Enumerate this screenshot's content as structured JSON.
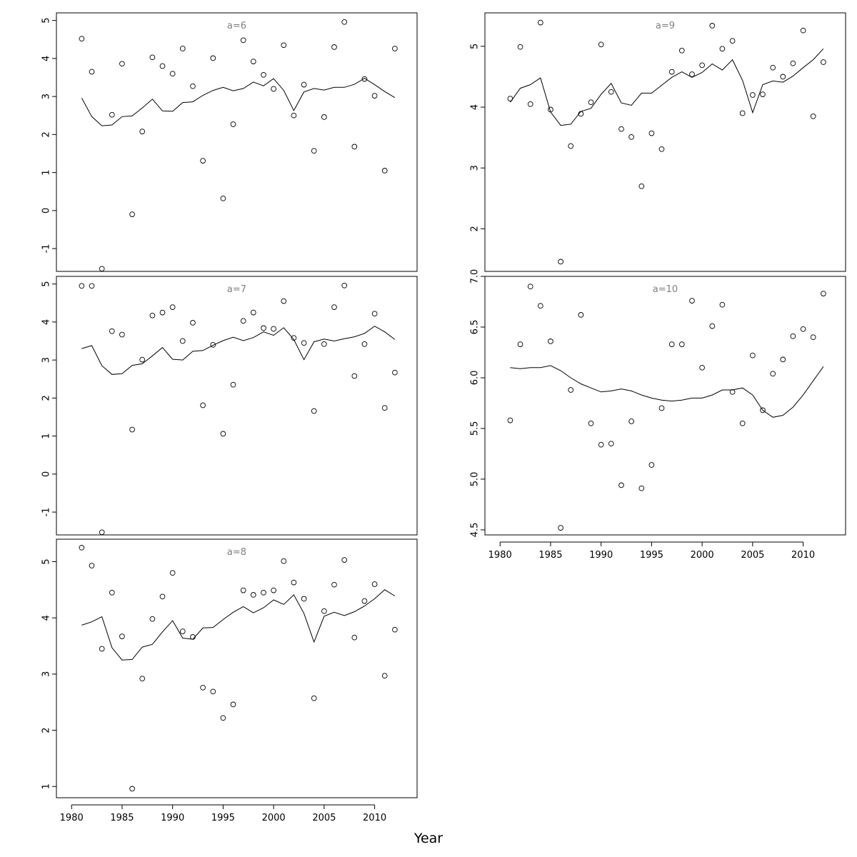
{
  "x_axis_title": "Year",
  "chart_data": [
    {
      "type": "scatter",
      "label": "a=6",
      "ylim": [
        -1.6,
        5.2
      ],
      "yticks": [
        "-1",
        "0",
        "1",
        "2",
        "3",
        "4",
        "5"
      ],
      "points": [
        [
          1981,
          4.52
        ],
        [
          1982,
          3.65
        ],
        [
          1983,
          -1.53
        ],
        [
          1984,
          2.52
        ],
        [
          1985,
          3.86
        ],
        [
          1986,
          -0.1
        ],
        [
          1987,
          2.08
        ],
        [
          1988,
          4.03
        ],
        [
          1989,
          3.8
        ],
        [
          1990,
          3.6
        ],
        [
          1991,
          4.26
        ],
        [
          1992,
          3.27
        ],
        [
          1993,
          1.31
        ],
        [
          1994,
          4.01
        ],
        [
          1995,
          0.32
        ],
        [
          1996,
          2.27
        ],
        [
          1997,
          4.48
        ],
        [
          1998,
          3.92
        ],
        [
          1999,
          3.57
        ],
        [
          2000,
          3.2
        ],
        [
          2001,
          4.35
        ],
        [
          2002,
          2.5
        ],
        [
          2003,
          3.31
        ],
        [
          2004,
          1.57
        ],
        [
          2005,
          2.46
        ],
        [
          2006,
          4.3
        ],
        [
          2007,
          4.96
        ],
        [
          2008,
          1.68
        ],
        [
          2009,
          3.46
        ],
        [
          2010,
          3.02
        ],
        [
          2011,
          1.05
        ],
        [
          2012,
          4.26
        ]
      ],
      "fit": [
        [
          1981,
          2.96
        ],
        [
          1982,
          2.47
        ],
        [
          1983,
          2.23
        ],
        [
          1984,
          2.25
        ],
        [
          1985,
          2.47
        ],
        [
          1986,
          2.49
        ],
        [
          1987,
          2.7
        ],
        [
          1988,
          2.93
        ],
        [
          1989,
          2.62
        ],
        [
          1990,
          2.61
        ],
        [
          1991,
          2.84
        ],
        [
          1992,
          2.86
        ],
        [
          1993,
          3.03
        ],
        [
          1994,
          3.16
        ],
        [
          1995,
          3.24
        ],
        [
          1996,
          3.15
        ],
        [
          1997,
          3.21
        ],
        [
          1998,
          3.38
        ],
        [
          1999,
          3.28
        ],
        [
          2000,
          3.47
        ],
        [
          2001,
          3.16
        ],
        [
          2002,
          2.63
        ],
        [
          2003,
          3.12
        ],
        [
          2004,
          3.21
        ],
        [
          2005,
          3.17
        ],
        [
          2006,
          3.24
        ],
        [
          2007,
          3.24
        ],
        [
          2008,
          3.32
        ],
        [
          2009,
          3.48
        ],
        [
          2010,
          3.31
        ],
        [
          2011,
          3.13
        ],
        [
          2012,
          2.97
        ]
      ]
    },
    {
      "type": "scatter",
      "label": "a=9",
      "ylim": [
        1.3,
        5.55
      ],
      "yticks": [
        "2",
        "3",
        "4",
        "5"
      ],
      "points": [
        [
          1981,
          4.14
        ],
        [
          1982,
          4.99
        ],
        [
          1983,
          4.05
        ],
        [
          1984,
          5.39
        ],
        [
          1985,
          3.96
        ],
        [
          1986,
          1.46
        ],
        [
          1987,
          3.36
        ],
        [
          1988,
          3.89
        ],
        [
          1989,
          4.08
        ],
        [
          1990,
          5.03
        ],
        [
          1991,
          4.25
        ],
        [
          1992,
          3.64
        ],
        [
          1993,
          3.51
        ],
        [
          1994,
          2.7
        ],
        [
          1995,
          3.57
        ],
        [
          1996,
          3.31
        ],
        [
          1997,
          4.58
        ],
        [
          1998,
          4.93
        ],
        [
          1999,
          4.54
        ],
        [
          2000,
          4.69
        ],
        [
          2001,
          5.34
        ],
        [
          2002,
          4.96
        ],
        [
          2003,
          5.09
        ],
        [
          2004,
          3.9
        ],
        [
          2005,
          4.2
        ],
        [
          2006,
          4.21
        ],
        [
          2007,
          4.65
        ],
        [
          2008,
          4.5
        ],
        [
          2009,
          4.72
        ],
        [
          2010,
          5.26
        ],
        [
          2011,
          3.85
        ],
        [
          2012,
          4.74
        ]
      ],
      "fit": [
        [
          1981,
          4.08
        ],
        [
          1982,
          4.31
        ],
        [
          1983,
          4.37
        ],
        [
          1984,
          4.48
        ],
        [
          1985,
          3.92
        ],
        [
          1986,
          3.7
        ],
        [
          1987,
          3.72
        ],
        [
          1988,
          3.93
        ],
        [
          1989,
          3.98
        ],
        [
          1990,
          4.21
        ],
        [
          1991,
          4.39
        ],
        [
          1992,
          4.07
        ],
        [
          1993,
          4.03
        ],
        [
          1994,
          4.23
        ],
        [
          1995,
          4.23
        ],
        [
          1996,
          4.36
        ],
        [
          1997,
          4.49
        ],
        [
          1998,
          4.58
        ],
        [
          1999,
          4.49
        ],
        [
          2000,
          4.57
        ],
        [
          2001,
          4.71
        ],
        [
          2002,
          4.61
        ],
        [
          2003,
          4.78
        ],
        [
          2004,
          4.44
        ],
        [
          2005,
          3.91
        ],
        [
          2006,
          4.37
        ],
        [
          2007,
          4.43
        ],
        [
          2008,
          4.41
        ],
        [
          2009,
          4.51
        ],
        [
          2010,
          4.65
        ],
        [
          2011,
          4.78
        ],
        [
          2012,
          4.96
        ]
      ]
    },
    {
      "type": "scatter",
      "label": "a=7",
      "ylim": [
        -1.6,
        5.2
      ],
      "yticks": [
        "-1",
        "0",
        "1",
        "2",
        "3",
        "4",
        "5"
      ],
      "points": [
        [
          1981,
          4.95
        ],
        [
          1982,
          4.95
        ],
        [
          1983,
          -1.53
        ],
        [
          1984,
          3.76
        ],
        [
          1985,
          3.67
        ],
        [
          1986,
          1.17
        ],
        [
          1987,
          3.01
        ],
        [
          1988,
          4.17
        ],
        [
          1989,
          4.25
        ],
        [
          1990,
          4.39
        ],
        [
          1991,
          3.5
        ],
        [
          1992,
          3.98
        ],
        [
          1993,
          1.81
        ],
        [
          1994,
          3.4
        ],
        [
          1995,
          1.06
        ],
        [
          1996,
          2.35
        ],
        [
          1997,
          4.03
        ],
        [
          1998,
          4.25
        ],
        [
          1999,
          3.84
        ],
        [
          2000,
          3.82
        ],
        [
          2001,
          4.55
        ],
        [
          2002,
          3.58
        ],
        [
          2003,
          3.45
        ],
        [
          2004,
          1.66
        ],
        [
          2005,
          3.42
        ],
        [
          2006,
          4.39
        ],
        [
          2007,
          4.96
        ],
        [
          2008,
          2.58
        ],
        [
          2009,
          3.42
        ],
        [
          2010,
          4.22
        ],
        [
          2011,
          1.74
        ],
        [
          2012,
          2.67
        ]
      ],
      "fit": [
        [
          1981,
          3.3
        ],
        [
          1982,
          3.38
        ],
        [
          1983,
          2.85
        ],
        [
          1984,
          2.62
        ],
        [
          1985,
          2.64
        ],
        [
          1986,
          2.86
        ],
        [
          1987,
          2.9
        ],
        [
          1988,
          3.11
        ],
        [
          1989,
          3.33
        ],
        [
          1990,
          3.02
        ],
        [
          1991,
          3.0
        ],
        [
          1992,
          3.23
        ],
        [
          1993,
          3.25
        ],
        [
          1994,
          3.39
        ],
        [
          1995,
          3.51
        ],
        [
          1996,
          3.6
        ],
        [
          1997,
          3.51
        ],
        [
          1998,
          3.59
        ],
        [
          1999,
          3.74
        ],
        [
          2000,
          3.65
        ],
        [
          2001,
          3.85
        ],
        [
          2002,
          3.54
        ],
        [
          2003,
          3.01
        ],
        [
          2004,
          3.48
        ],
        [
          2005,
          3.55
        ],
        [
          2006,
          3.5
        ],
        [
          2007,
          3.56
        ],
        [
          2008,
          3.61
        ],
        [
          2009,
          3.7
        ],
        [
          2010,
          3.89
        ],
        [
          2011,
          3.74
        ],
        [
          2012,
          3.54
        ]
      ]
    },
    {
      "type": "scatter",
      "label": "a=10",
      "ylim": [
        4.45,
        7.0
      ],
      "yticks": [
        "4.5",
        "5.0",
        "5.5",
        "6.0",
        "6.5",
        "7.0"
      ],
      "points": [
        [
          1981,
          5.58
        ],
        [
          1982,
          6.33
        ],
        [
          1983,
          6.9
        ],
        [
          1984,
          6.71
        ],
        [
          1985,
          6.36
        ],
        [
          1986,
          4.52
        ],
        [
          1987,
          5.88
        ],
        [
          1988,
          6.62
        ],
        [
          1989,
          5.55
        ],
        [
          1990,
          5.34
        ],
        [
          1991,
          5.35
        ],
        [
          1992,
          4.94
        ],
        [
          1993,
          5.57
        ],
        [
          1994,
          4.91
        ],
        [
          1995,
          5.14
        ],
        [
          1996,
          5.7
        ],
        [
          1997,
          6.33
        ],
        [
          1998,
          6.33
        ],
        [
          1999,
          6.76
        ],
        [
          2000,
          6.1
        ],
        [
          2001,
          6.51
        ],
        [
          2002,
          6.72
        ],
        [
          2003,
          5.86
        ],
        [
          2004,
          5.55
        ],
        [
          2005,
          6.22
        ],
        [
          2006,
          5.68
        ],
        [
          2007,
          6.04
        ],
        [
          2008,
          6.18
        ],
        [
          2009,
          6.41
        ],
        [
          2010,
          6.48
        ],
        [
          2011,
          6.4
        ],
        [
          2012,
          6.83
        ]
      ],
      "fit": [
        [
          1981,
          6.1
        ],
        [
          1982,
          6.09
        ],
        [
          1983,
          6.1
        ],
        [
          1984,
          6.1
        ],
        [
          1985,
          6.12
        ],
        [
          1986,
          6.07
        ],
        [
          1987,
          6.0
        ],
        [
          1988,
          5.94
        ],
        [
          1989,
          5.9
        ],
        [
          1990,
          5.86
        ],
        [
          1991,
          5.87
        ],
        [
          1992,
          5.89
        ],
        [
          1993,
          5.87
        ],
        [
          1994,
          5.83
        ],
        [
          1995,
          5.8
        ],
        [
          1996,
          5.78
        ],
        [
          1997,
          5.77
        ],
        [
          1998,
          5.78
        ],
        [
          1999,
          5.8
        ],
        [
          2000,
          5.8
        ],
        [
          2001,
          5.83
        ],
        [
          2002,
          5.88
        ],
        [
          2003,
          5.88
        ],
        [
          2004,
          5.9
        ],
        [
          2005,
          5.83
        ],
        [
          2006,
          5.68
        ],
        [
          2007,
          5.61
        ],
        [
          2008,
          5.63
        ],
        [
          2009,
          5.71
        ],
        [
          2010,
          5.83
        ],
        [
          2011,
          5.97
        ],
        [
          2012,
          6.11
        ]
      ]
    },
    {
      "type": "scatter",
      "label": "a=8",
      "ylim": [
        0.8,
        5.4
      ],
      "yticks": [
        "1",
        "2",
        "3",
        "4",
        "5"
      ],
      "points": [
        [
          1981,
          5.25
        ],
        [
          1982,
          4.93
        ],
        [
          1983,
          3.45
        ],
        [
          1984,
          4.45
        ],
        [
          1985,
          3.67
        ],
        [
          1986,
          0.96
        ],
        [
          1987,
          2.92
        ],
        [
          1988,
          3.98
        ],
        [
          1989,
          4.38
        ],
        [
          1990,
          4.8
        ],
        [
          1991,
          3.76
        ],
        [
          1992,
          3.66
        ],
        [
          1993,
          2.76
        ],
        [
          1994,
          2.69
        ],
        [
          1995,
          2.22
        ],
        [
          1996,
          2.46
        ],
        [
          1997,
          4.49
        ],
        [
          1998,
          4.41
        ],
        [
          1999,
          4.45
        ],
        [
          2000,
          4.49
        ],
        [
          2001,
          5.01
        ],
        [
          2002,
          4.63
        ],
        [
          2003,
          4.34
        ],
        [
          2004,
          2.57
        ],
        [
          2005,
          4.12
        ],
        [
          2006,
          4.59
        ],
        [
          2007,
          5.03
        ],
        [
          2008,
          3.65
        ],
        [
          2009,
          4.3
        ],
        [
          2010,
          4.6
        ],
        [
          2011,
          2.97
        ],
        [
          2012,
          3.79
        ]
      ],
      "fit": [
        [
          1981,
          3.87
        ],
        [
          1982,
          3.93
        ],
        [
          1983,
          4.02
        ],
        [
          1984,
          3.47
        ],
        [
          1985,
          3.25
        ],
        [
          1986,
          3.26
        ],
        [
          1987,
          3.48
        ],
        [
          1988,
          3.53
        ],
        [
          1989,
          3.75
        ],
        [
          1990,
          3.95
        ],
        [
          1991,
          3.64
        ],
        [
          1992,
          3.62
        ],
        [
          1993,
          3.82
        ],
        [
          1994,
          3.83
        ],
        [
          1995,
          3.97
        ],
        [
          1996,
          4.1
        ],
        [
          1997,
          4.2
        ],
        [
          1998,
          4.09
        ],
        [
          1999,
          4.18
        ],
        [
          2000,
          4.32
        ],
        [
          2001,
          4.24
        ],
        [
          2002,
          4.41
        ],
        [
          2003,
          4.08
        ],
        [
          2004,
          3.57
        ],
        [
          2005,
          4.03
        ],
        [
          2006,
          4.1
        ],
        [
          2007,
          4.04
        ],
        [
          2008,
          4.11
        ],
        [
          2009,
          4.21
        ],
        [
          2010,
          4.34
        ],
        [
          2011,
          4.5
        ],
        [
          2012,
          4.39
        ]
      ]
    }
  ],
  "x_axis": {
    "xlim": [
      1978.5,
      2014.2
    ],
    "ticks": [
      "1980",
      "1985",
      "1990",
      "1995",
      "2000",
      "2005",
      "2010"
    ]
  }
}
